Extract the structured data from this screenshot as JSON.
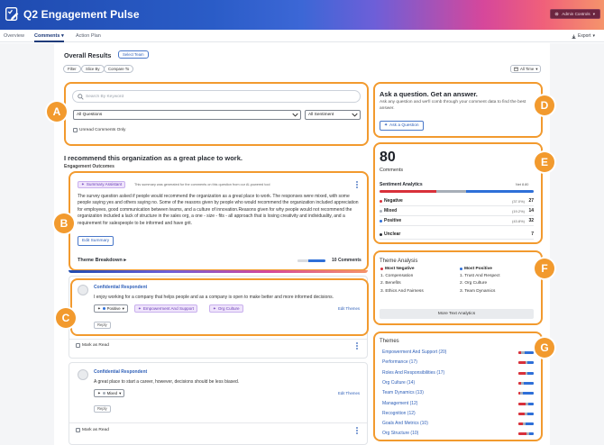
{
  "app": {
    "title": "Q2 Engagement Pulse",
    "admin_label": "Admin Controls"
  },
  "nav": {
    "tabs": [
      "Overview",
      "Comments",
      "Action Plan"
    ],
    "active": 1,
    "export_label": "Export"
  },
  "results": {
    "title": "Overall Results",
    "select_team": "Select Team",
    "filters": [
      "Filter",
      "Slice By",
      "Compare To"
    ],
    "time_range": "All Time"
  },
  "search": {
    "placeholder": "Search By Keyword",
    "question_filter": "All Questions",
    "sentiment_filter": "All Sentiment",
    "unread_label": "Unread Comments Only"
  },
  "question": {
    "text": "I recommend this organization as a great place to work.",
    "subheading": "Engagement Outcomes"
  },
  "summary": {
    "tag": "Summary Assistant",
    "note": "This summary was generated for the comments on this question from our AI-powered tool",
    "body": "The survey question asked if people would recommend the organization as a great place to work. The responses were mixed, with some people saying yes and others saying no. Some of the reasons given by people who would recommend the organization included appreciation for employees, good communication between teams, and a culture of innovation.Reasons given for why people would not recommend the organization included a lack of structure in the sales org, a one - size - fits - all approach that is losing creativity and individuality, and a requirement for salespeople to be informed and have grit.",
    "edit_label": "Edit Summary",
    "breakdown_label": "Theme Breakdown",
    "comments_count": "10 Comments"
  },
  "comments": [
    {
      "respondent": "Confidential Respondent",
      "text": "I enjoy working for a company that helps people and as a company is open to make better and more informed decisions.",
      "sentiment": "Positive",
      "themes": [
        "Empowerment And Support",
        "Org Culture"
      ],
      "edit_themes": "Edit Themes",
      "reply": "Reply",
      "mark_read": "Mark as Read"
    },
    {
      "respondent": "Confidential Respondent",
      "text": "A great place to start a career, however, decisions should be less biased.",
      "sentiment": "Mixed",
      "themes": [],
      "edit_themes": "Edit Themes",
      "reply": "Reply",
      "mark_read": "Mark as Read"
    }
  ],
  "ask": {
    "title": "Ask a question. Get an answer.",
    "description": "Ask any question and we'll comb through your comment data to find the best answer.",
    "button": "Ask a Question"
  },
  "stats": {
    "total": "80",
    "total_label": "Comments",
    "analytics_title": "Sentiment Analytics",
    "net": "Net 8.80",
    "rows": [
      {
        "name": "Negative",
        "pct": "(37.0%)",
        "count": "27",
        "color": "#d8303a"
      },
      {
        "name": "Mixed",
        "pct": "(19.2%)",
        "count": "14",
        "color": "#a7aeb8"
      },
      {
        "name": "Positive",
        "pct": "(43.8%)",
        "count": "32",
        "color": "#2e6fd8"
      },
      {
        "name": "Unclear",
        "pct": "",
        "count": "7",
        "color": "#2b2f36"
      }
    ]
  },
  "theme_analysis": {
    "title": "Theme Analysis",
    "negative_head": "Most Negative",
    "positive_head": "Most Positive",
    "negative": [
      "1. Compensation",
      "2. Benefits",
      "3. Ethics And Fairness"
    ],
    "positive": [
      "1. Trust And Respect",
      "2. Org Culture",
      "3. Team Dynamics"
    ],
    "more_button": "More Text Analytics"
  },
  "themes": {
    "title": "Themes",
    "items": [
      {
        "label": "Empowerment And Support",
        "count": "(20)",
        "split": [
          20,
          20,
          60
        ]
      },
      {
        "label": "Performance",
        "count": "(17)",
        "split": [
          45,
          15,
          40
        ]
      },
      {
        "label": "Roles And Responsibilities",
        "count": "(17)",
        "split": [
          45,
          15,
          40
        ]
      },
      {
        "label": "Org Culture",
        "count": "(14)",
        "split": [
          15,
          20,
          65
        ]
      },
      {
        "label": "Team Dynamics",
        "count": "(13)",
        "split": [
          10,
          20,
          70
        ]
      },
      {
        "label": "Management",
        "count": "(12)",
        "split": [
          45,
          20,
          35
        ]
      },
      {
        "label": "Recognition",
        "count": "(12)",
        "split": [
          40,
          20,
          40
        ]
      },
      {
        "label": "Goals And Metrics",
        "count": "(10)",
        "split": [
          30,
          20,
          50
        ]
      },
      {
        "label": "Org Structure",
        "count": "(10)",
        "split": [
          50,
          20,
          30
        ]
      }
    ]
  },
  "callouts": [
    "A",
    "B",
    "C",
    "D",
    "E",
    "F",
    "G"
  ],
  "colors": {
    "accent": "#2e5fb8",
    "callout": "#f29a2e",
    "negative": "#d8303a",
    "mixed": "#a7aeb8",
    "positive": "#2e6fd8"
  }
}
